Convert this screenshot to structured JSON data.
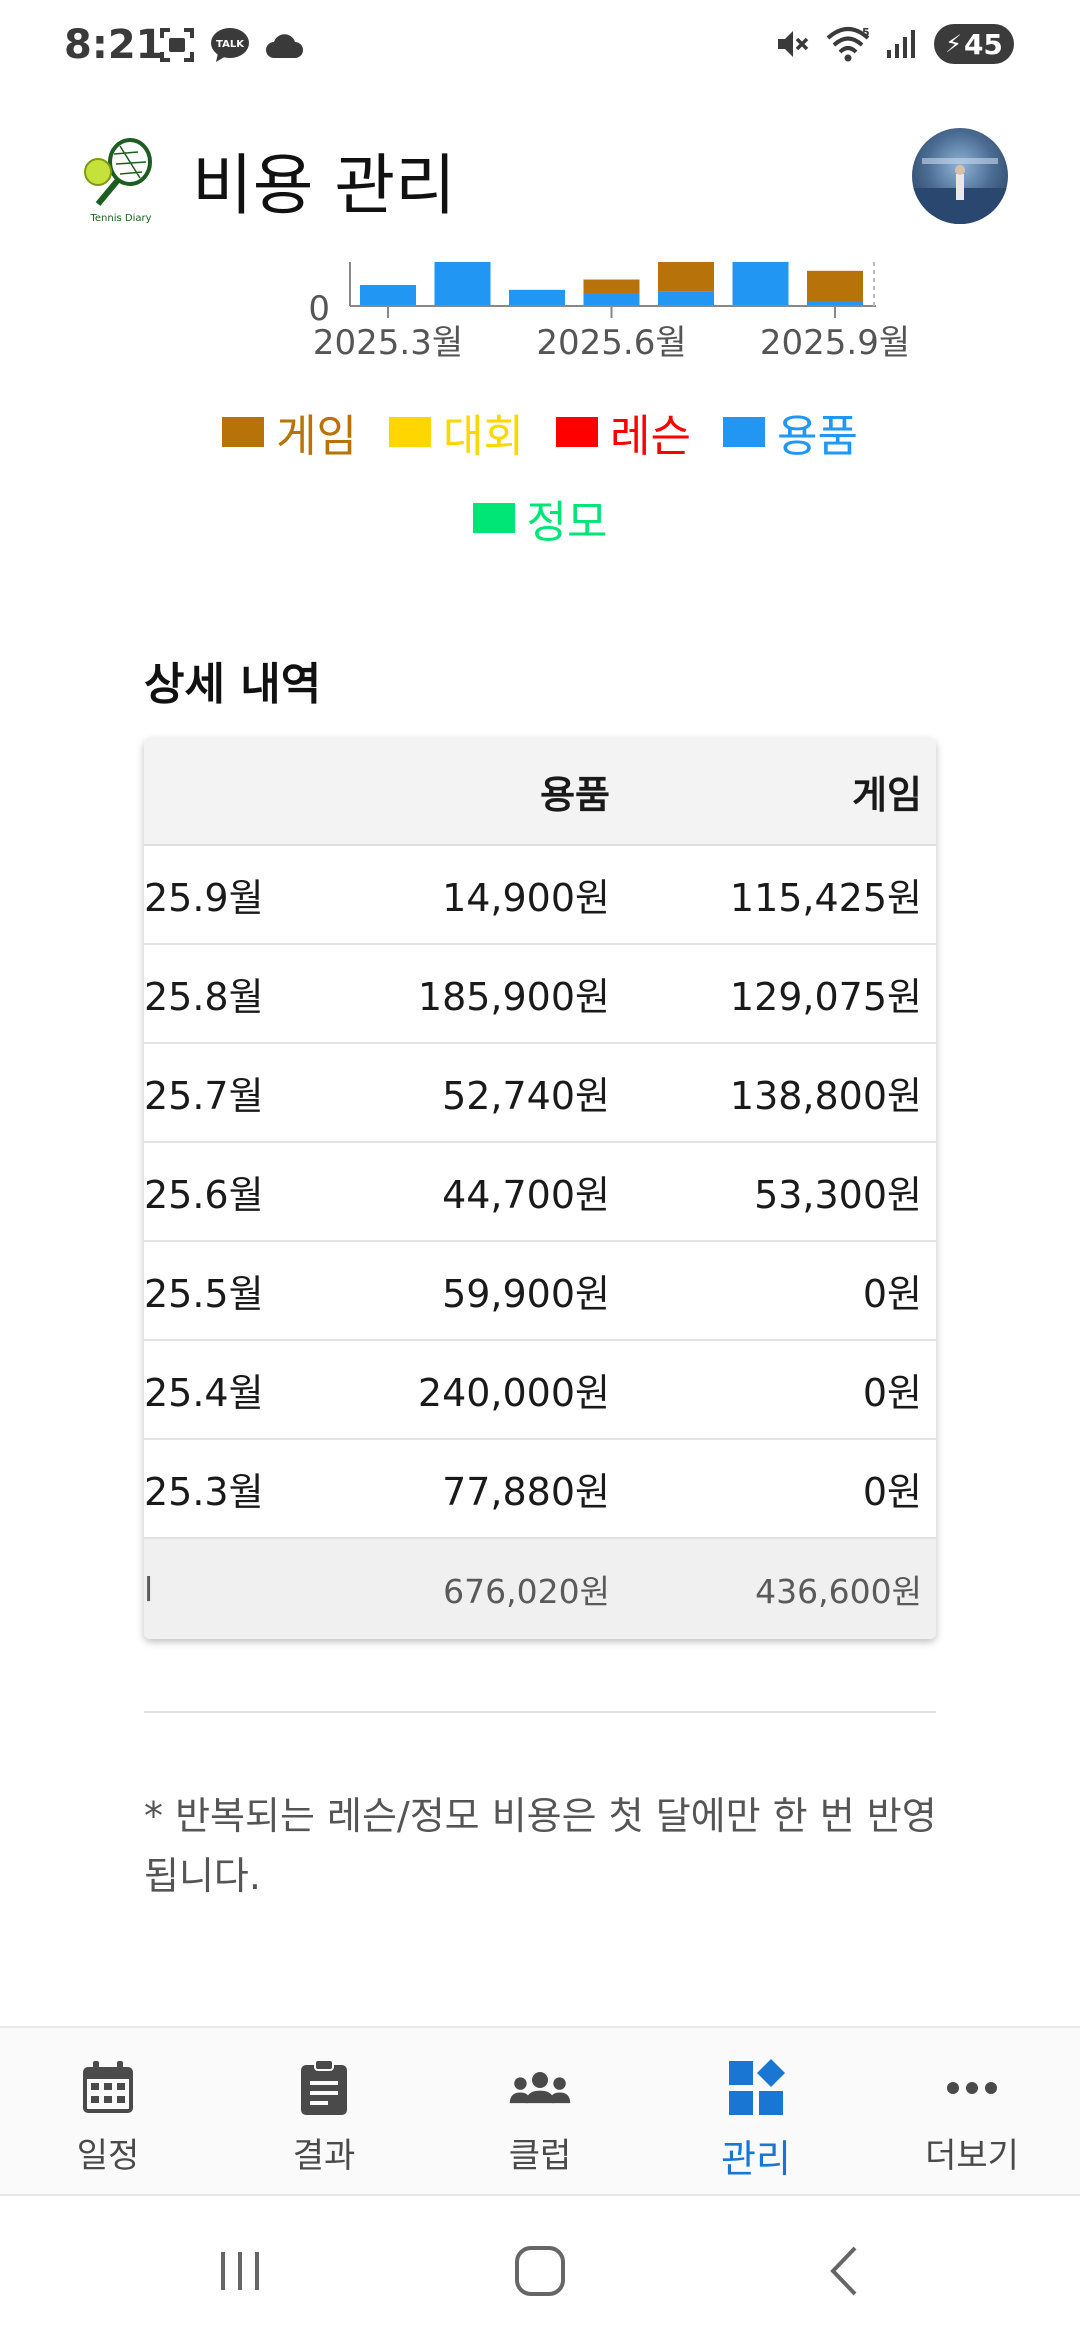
{
  "status_bar": {
    "time": "8:21",
    "battery": "45",
    "left_icons": [
      "screenshot-icon",
      "talk-icon",
      "cloud-icon"
    ],
    "right_icons": [
      "mute-icon",
      "wifi-icon",
      "signal-icon",
      "battery-icon"
    ],
    "talk_badge": "TALK",
    "wifi_badge": "5"
  },
  "header": {
    "title": "비용 관리",
    "logo_text": "Tennis Diary"
  },
  "colors": {
    "game": "#b8720a",
    "tournament": "#ffd600",
    "lesson": "#ff0000",
    "gear": "#2196f3",
    "meetup": "#00e676",
    "active_nav": "#1976d2"
  },
  "chart_data": {
    "type": "bar",
    "stacked": true,
    "categories": [
      "2025.3월",
      "2025.4월",
      "2025.5월",
      "2025.6월",
      "2025.7월",
      "2025.8월",
      "2025.9월"
    ],
    "x_tick_labels": [
      "2025.3월",
      "2025.6월",
      "2025.9월"
    ],
    "y_tick_labels": [
      "0"
    ],
    "series": [
      {
        "name": "용품",
        "color": "#2196f3",
        "values": [
          77880,
          240000,
          59900,
          44700,
          52740,
          185900,
          14900
        ]
      },
      {
        "name": "게임",
        "color": "#b8720a",
        "values": [
          0,
          0,
          0,
          53300,
          138800,
          129075,
          115425
        ]
      }
    ],
    "legend": [
      {
        "label": "게임",
        "color": "#b8720a"
      },
      {
        "label": "대회",
        "color": "#ffd600"
      },
      {
        "label": "레슨",
        "color": "#ff0000"
      },
      {
        "label": "용품",
        "color": "#2196f3"
      },
      {
        "label": "정모",
        "color": "#00e676"
      }
    ]
  },
  "details": {
    "title": "상세 내역",
    "columns": [
      "",
      "용품",
      "게임"
    ],
    "rows": [
      {
        "month": "25.9월",
        "gear": "14,900원",
        "game": "115,425원"
      },
      {
        "month": "25.8월",
        "gear": "185,900원",
        "game": "129,075원"
      },
      {
        "month": "25.7월",
        "gear": "52,740원",
        "game": "138,800원"
      },
      {
        "month": "25.6월",
        "gear": "44,700원",
        "game": "53,300원"
      },
      {
        "month": "25.5월",
        "gear": "59,900원",
        "game": "0원"
      },
      {
        "month": "25.4월",
        "gear": "240,000원",
        "game": "0원"
      },
      {
        "month": "25.3월",
        "gear": "77,880원",
        "game": "0원"
      }
    ],
    "total": {
      "label": "l",
      "gear": "676,020원",
      "game": "436,600원"
    }
  },
  "footnote": "* 반복되는 레슨/정모 비용은 첫 달에만 한 번 반영됩니다.",
  "bottom_nav": [
    {
      "label": "일정",
      "icon": "calendar-icon"
    },
    {
      "label": "결과",
      "icon": "clipboard-icon"
    },
    {
      "label": "클럽",
      "icon": "group-icon"
    },
    {
      "label": "관리",
      "icon": "dashboard-icon",
      "active": true
    },
    {
      "label": "더보기",
      "icon": "more-icon"
    }
  ]
}
